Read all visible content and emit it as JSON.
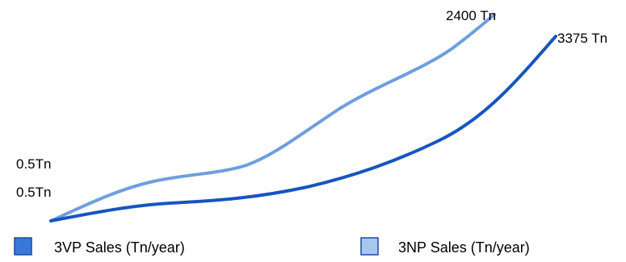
{
  "chart_data": {
    "type": "line",
    "title": "",
    "xlabel": "",
    "ylabel": "",
    "grid": false,
    "legend_position": "bottom",
    "series": [
      {
        "name": "3VP  Sales (Tn/year)",
        "color": "#1655c0",
        "start_label": "0.5Tn",
        "end_label": "3375 Tn"
      },
      {
        "name": "3NP  Sales (Tn/year)",
        "color": "#6f9ee0",
        "start_label": "0.5Tn",
        "end_label": "2400 Tn"
      }
    ]
  }
}
